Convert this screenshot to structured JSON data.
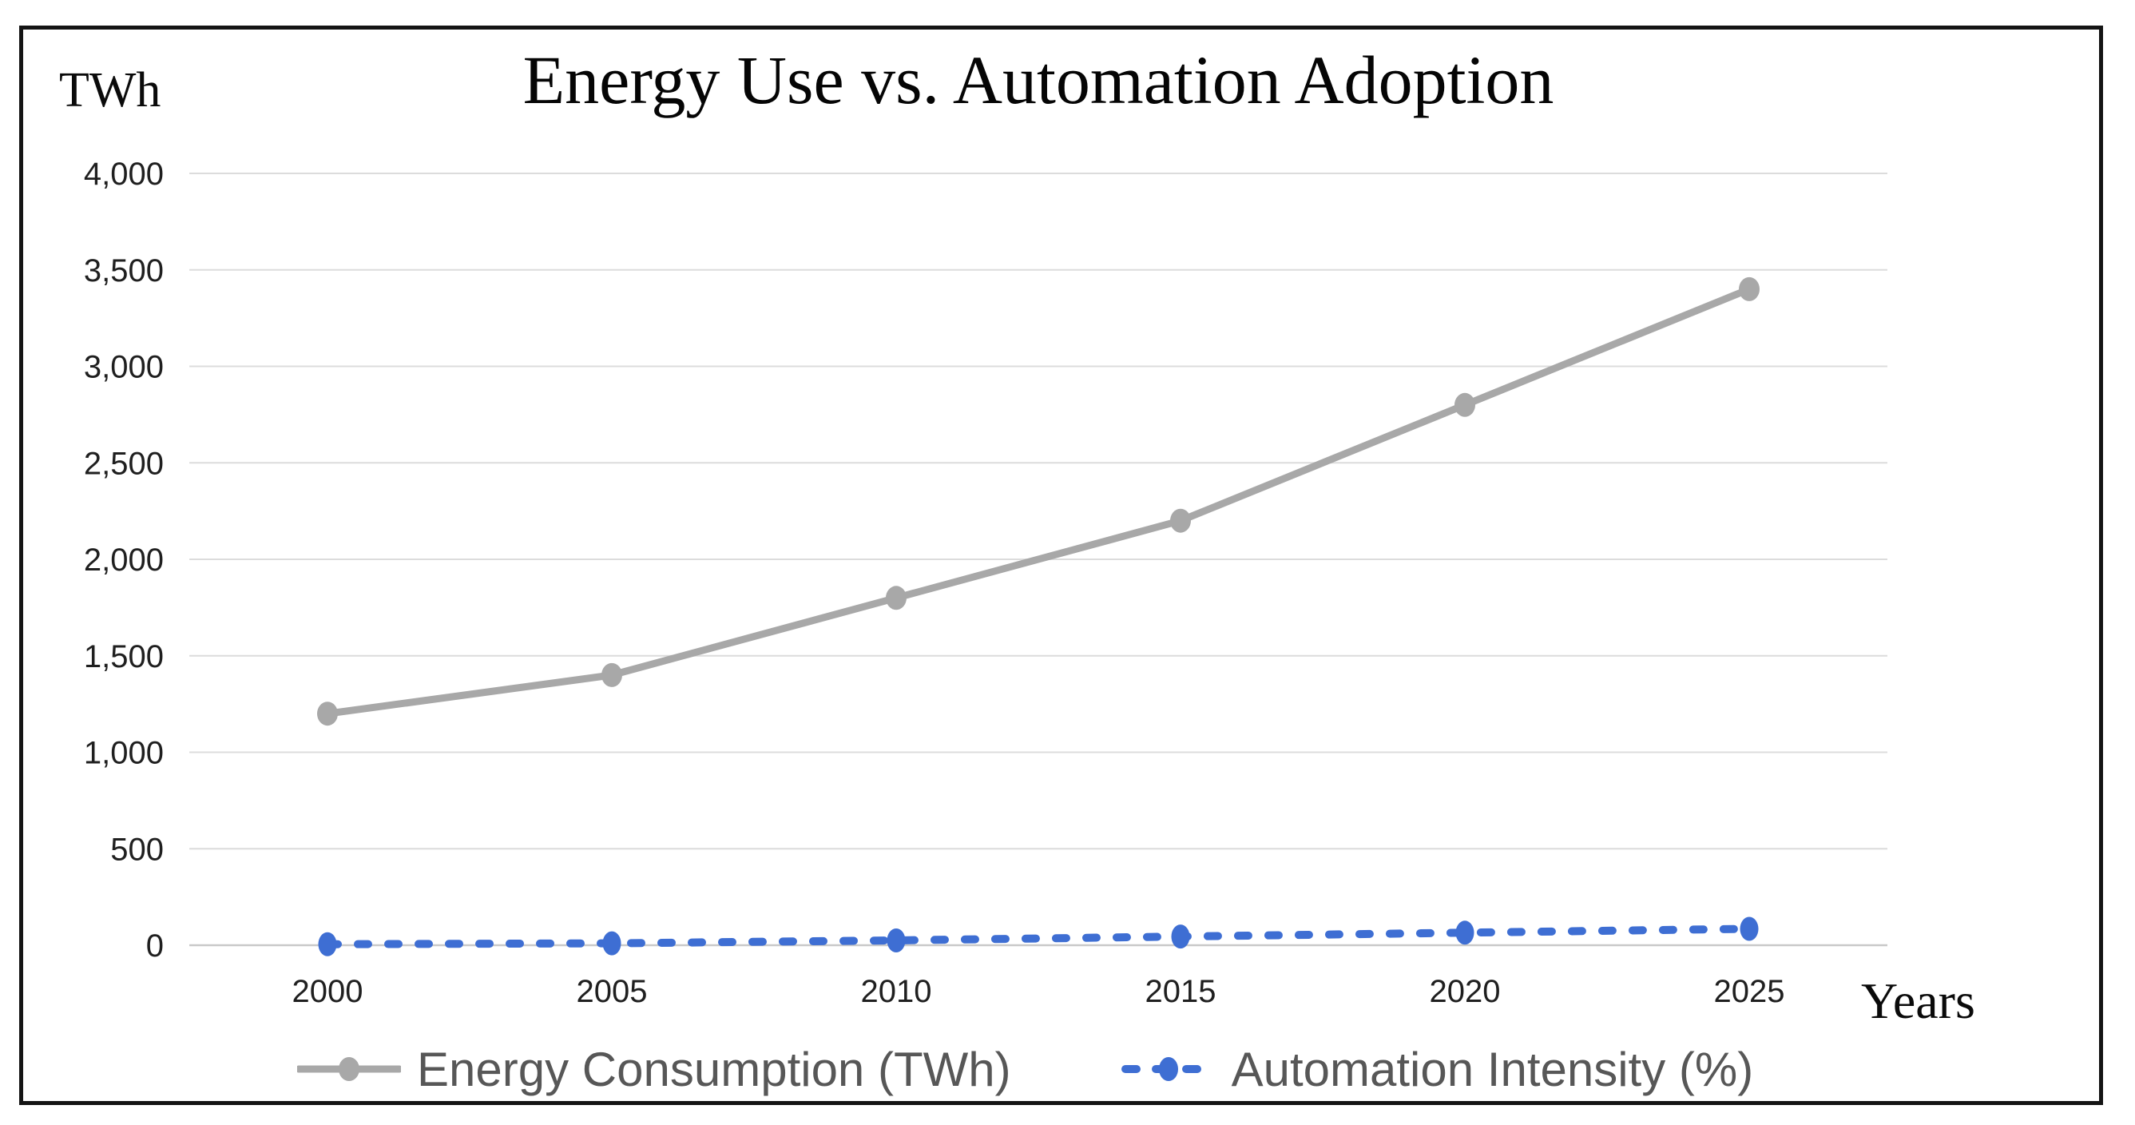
{
  "title": "Energy Use vs. Automation Adoption",
  "y_unit_label": "TWh",
  "x_axis_label": "Years",
  "colors": {
    "energy_line": "#a8a8a8",
    "automation_line": "#3e6ed3",
    "gridline": "#dcdcdc",
    "axis_line": "#c9c9c9",
    "tick_text": "#1f1f1f",
    "legend_text": "#575757",
    "frame_border": "#141414"
  },
  "chart_data": {
    "type": "line",
    "title": "Energy Use vs. Automation Adoption",
    "xlabel": "Years",
    "ylabel": "TWh",
    "categories": [
      "2000",
      "2005",
      "2010",
      "2015",
      "2020",
      "2025"
    ],
    "series": [
      {
        "name": "Energy Consumption (TWh)",
        "values": [
          1200,
          1400,
          1800,
          2200,
          2800,
          3400
        ],
        "color": "#a8a8a8",
        "line_style": "solid",
        "marker": "circle"
      },
      {
        "name": "Automation Intensity (%)",
        "values": [
          5,
          10,
          25,
          45,
          65,
          85
        ],
        "color": "#3e6ed3",
        "line_style": "dashed",
        "marker": "circle"
      }
    ],
    "ylim": [
      0,
      4000
    ],
    "ytick_step": 500,
    "y_tick_labels": [
      "0",
      "500",
      "1,000",
      "1,500",
      "2,000",
      "2,500",
      "3,000",
      "3,500",
      "4,000"
    ],
    "grid": "horizontal",
    "legend_position": "bottom"
  },
  "legend": {
    "items": [
      {
        "label": "Energy Consumption (TWh)"
      },
      {
        "label": "Automation Intensity (%)"
      }
    ]
  }
}
